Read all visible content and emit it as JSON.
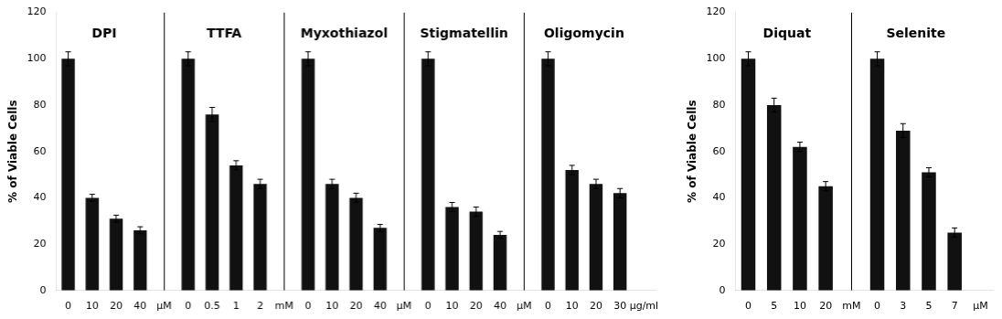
{
  "chart_data": [
    {
      "type": "bar",
      "ylabel": "% of Viable Cells",
      "color": "#111111",
      "ylim": [
        0,
        120
      ],
      "yticks": [
        0,
        20,
        40,
        60,
        80,
        100,
        120
      ],
      "grid": false,
      "groups": [
        {
          "label": "DPI",
          "categories": [
            "0",
            "10",
            "20",
            "40"
          ],
          "unit": "μM",
          "values": [
            100,
            40,
            31,
            26
          ],
          "errors": [
            3,
            1.5,
            1.5,
            1.5
          ]
        },
        {
          "label": "TTFA",
          "categories": [
            "0",
            "0.5",
            "1",
            "2"
          ],
          "unit": "mM",
          "values": [
            100,
            76,
            54,
            46
          ],
          "errors": [
            3,
            3,
            2,
            2
          ]
        },
        {
          "label": "Myxothiazol",
          "categories": [
            "0",
            "10",
            "20",
            "40"
          ],
          "unit": "μM",
          "values": [
            100,
            46,
            40,
            27
          ],
          "errors": [
            3,
            2,
            2,
            1.5
          ]
        },
        {
          "label": "Stigmatellin",
          "categories": [
            "0",
            "10",
            "20",
            "40"
          ],
          "unit": "μM",
          "values": [
            100,
            36,
            34,
            24
          ],
          "errors": [
            3,
            2,
            2,
            1.5
          ]
        },
        {
          "label": "Oligomycin",
          "categories": [
            "0",
            "10",
            "20",
            "30"
          ],
          "unit": "μg/ml",
          "values": [
            100,
            52,
            46,
            42
          ],
          "errors": [
            3,
            2,
            2,
            2
          ]
        }
      ]
    },
    {
      "type": "bar",
      "ylabel": "% of Viable Cells",
      "color": "#111111",
      "ylim": [
        0,
        120
      ],
      "yticks": [
        0,
        20,
        40,
        60,
        80,
        100,
        120
      ],
      "grid": false,
      "groups": [
        {
          "label": "Diquat",
          "categories": [
            "0",
            "5",
            "10",
            "20"
          ],
          "unit": "mM",
          "values": [
            100,
            80,
            62,
            45
          ],
          "errors": [
            3,
            3,
            2,
            2
          ]
        },
        {
          "label": "Selenite",
          "categories": [
            "0",
            "3",
            "5",
            "7"
          ],
          "unit": "μM",
          "values": [
            100,
            69,
            51,
            25
          ],
          "errors": [
            3,
            3,
            2,
            2
          ]
        }
      ]
    }
  ]
}
